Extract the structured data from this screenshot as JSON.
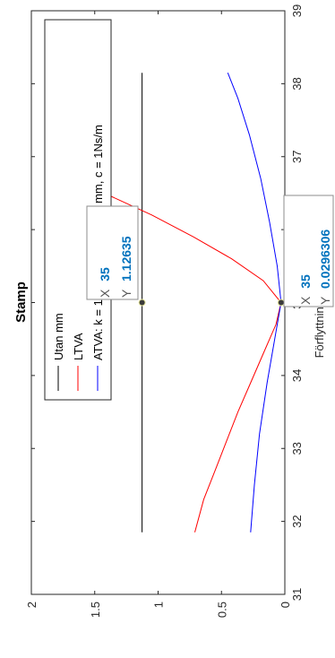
{
  "chart_data": {
    "type": "line",
    "title": "Stamp",
    "xlabel": "",
    "ylabel": "Förflyttning [mm-rms]",
    "xlim": [
      31,
      39
    ],
    "ylim": [
      0,
      2
    ],
    "x_ticks": [
      "31",
      "32",
      "33",
      "34",
      "35",
      "36",
      "37",
      "38",
      "39"
    ],
    "y_ticks": [
      "0",
      "0.5",
      "1",
      "1.5",
      "2"
    ],
    "grid": false,
    "orientation": "rotated-90-clockwise",
    "legend_position": "top-left",
    "series": [
      {
        "name": "Utan mm",
        "color": "#000000",
        "x": [
          31.85,
          35,
          38.15
        ],
        "y": [
          1.12635,
          1.12635,
          1.12635
        ]
      },
      {
        "name": "LTVA",
        "color": "#ff0000",
        "x": [
          31.85,
          32.3,
          32.7,
          33.1,
          33.5,
          33.9,
          34.3,
          34.7,
          35,
          35.3,
          35.6,
          35.9,
          36.2,
          36.4,
          36.6,
          36.8
        ],
        "y": [
          0.71,
          0.64,
          0.55,
          0.46,
          0.37,
          0.27,
          0.17,
          0.07,
          0.03,
          0.17,
          0.42,
          0.72,
          1.05,
          1.3,
          1.55,
          1.85
        ]
      },
      {
        "name": "ATVA: k = 1000 N/m, a = 3.25 mm, c = 1Ns/m",
        "color": "#0000ff",
        "x": [
          31.85,
          32.5,
          33.2,
          33.9,
          34.5,
          35,
          35.5,
          36.1,
          36.7,
          37.3,
          37.8,
          38.15
        ],
        "y": [
          0.27,
          0.24,
          0.2,
          0.14,
          0.08,
          0.03,
          0.06,
          0.12,
          0.19,
          0.28,
          0.37,
          0.45
        ]
      }
    ],
    "datatips": [
      {
        "x_key": "X",
        "x_value": "35",
        "y_key": "Y",
        "y_value": "1.12635",
        "x": 35,
        "y": 1.12635
      },
      {
        "x_key": "X",
        "x_value": "35",
        "y_key": "Y",
        "y_value": "0.0296306",
        "x": 35,
        "y": 0.0296306
      }
    ]
  }
}
